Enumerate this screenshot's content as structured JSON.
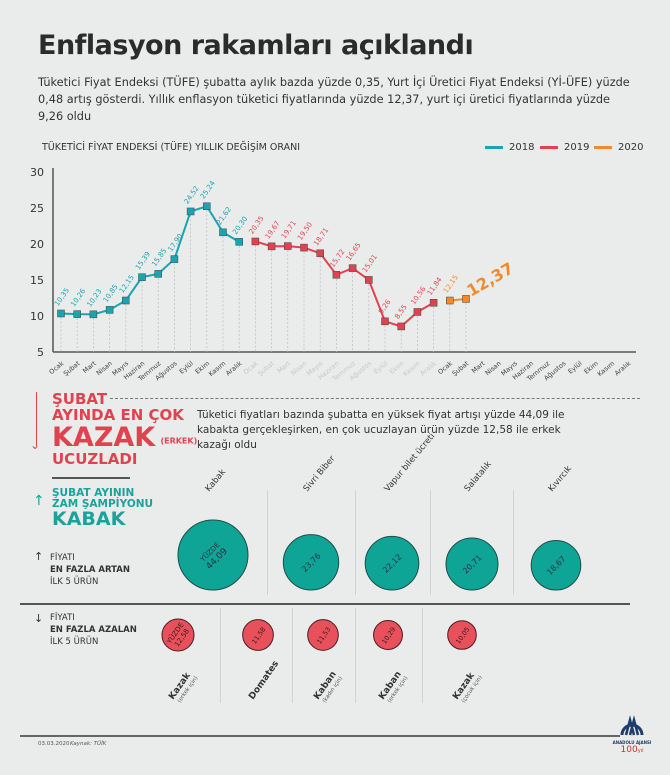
{
  "title": "Enflasyon rakamları açıklandı",
  "lead": "Tüketici Fiyat Endeksi (TÜFE) şubatta aylık bazda yüzde 0,35, Yurt İçi Üretici Fiyat Endeksi (Yİ-ÜFE) yüzde 0,48 artış gösterdi. Yıllık enflasyon tüketici fiyatlarında yüzde 12,37, yurt içi üretici fiyatlarında yüzde 9,26 oldu",
  "chart_data": {
    "type": "line",
    "title": "TÜKETİCİ FİYAT ENDEKSİ (TÜFE) YILLIK DEĞİŞİM ORANI",
    "ylim": [
      5,
      30
    ],
    "yticks": [
      5,
      10,
      15,
      20,
      25,
      30
    ],
    "grid": false,
    "legend": "top-right",
    "months": [
      "Ocak",
      "Şubat",
      "Mart",
      "Nisan",
      "Mayıs",
      "Haziran",
      "Temmuz",
      "Ağustos",
      "Eylül",
      "Ekim",
      "Kasım",
      "Aralık"
    ],
    "series": [
      {
        "name": "2018",
        "color": "#1aa3b0",
        "labels": [
          "10,35",
          "10,26",
          "10,23",
          "10,85",
          "12,15",
          "15,39",
          "15,85",
          "17,90",
          "24,52",
          "25,24",
          "21,62",
          "20,30"
        ],
        "values": [
          10.35,
          10.26,
          10.23,
          10.85,
          12.15,
          15.39,
          15.85,
          17.9,
          24.52,
          25.24,
          21.62,
          20.3
        ]
      },
      {
        "name": "2019",
        "color": "#e0434f",
        "labels": [
          "20,35",
          "19,67",
          "19,71",
          "19,50",
          "18,71",
          "15,72",
          "16,65",
          "15,01",
          "9,26",
          "8,55",
          "10,56",
          "11,84"
        ],
        "values": [
          20.35,
          19.67,
          19.71,
          19.5,
          18.71,
          15.72,
          16.65,
          15.01,
          9.26,
          8.55,
          10.56,
          11.84
        ]
      },
      {
        "name": "2020",
        "color": "#f08a2c",
        "labels": [
          "12,15",
          "12,37"
        ],
        "values": [
          12.15,
          12.37
        ]
      }
    ]
  },
  "left": {
    "down_headline": [
      "ŞUBAT",
      "AYINDA EN ÇOK"
    ],
    "down_item": "KAZAK",
    "down_item_note": "(ERKEK)",
    "down_verb": "UCUZLADI",
    "up_headline": [
      "ŞUBAT AYININ",
      "ZAM ŞAMPİYONU"
    ],
    "up_item": "KABAK",
    "up_label": [
      "FİYATI",
      "EN FAZLA ARTAN",
      "İLK 5 ÜRÜN"
    ],
    "down_label": [
      "FİYATI",
      "EN FAZLA AZALAN",
      "İLK 5 ÜRÜN"
    ]
  },
  "summary": "Tüketici fiyatları bazında şubatta en yüksek fiyat artışı yüzde 44,09 ile kabakta gerçekleşirken, en çok ucuzlayan ürün yüzde 12,58 ile erkek kazağı oldu",
  "increases": [
    {
      "name": "Kabak",
      "prefix": "YÜZDE",
      "value": "44,09",
      "num": 44.09
    },
    {
      "name": "Sivri Biber",
      "value": "23,76",
      "num": 23.76
    },
    {
      "name": "Vapur bilet ücreti",
      "value": "22,12",
      "num": 22.12
    },
    {
      "name": "Salatalık",
      "value": "20,71",
      "num": 20.71
    },
    {
      "name": "Kıvırcık",
      "value": "18,67",
      "num": 18.67
    }
  ],
  "decreases": [
    {
      "name": "Kazak",
      "note": "(erkek için)",
      "prefix": "YÜZDE",
      "value": "12,58",
      "num": 12.58
    },
    {
      "name": "Domates",
      "note": "",
      "value": "11,58",
      "num": 11.58
    },
    {
      "name": "Kaban",
      "note": "(kadın için)",
      "value": "11,53",
      "num": 11.53
    },
    {
      "name": "Kaban",
      "note": "(erkek için)",
      "value": "10,29",
      "num": 10.29
    },
    {
      "name": "Kazak",
      "note": "(çocuk için)",
      "value": "10,05",
      "num": 10.05
    }
  ],
  "colors": {
    "increase": "#0fa596",
    "decrease": "#e8505b"
  },
  "footer": {
    "date": "03.03.2020",
    "source": "Kaynak: TÜİK",
    "logo": "AA ANADOLU AJANSI 100 yıl"
  }
}
